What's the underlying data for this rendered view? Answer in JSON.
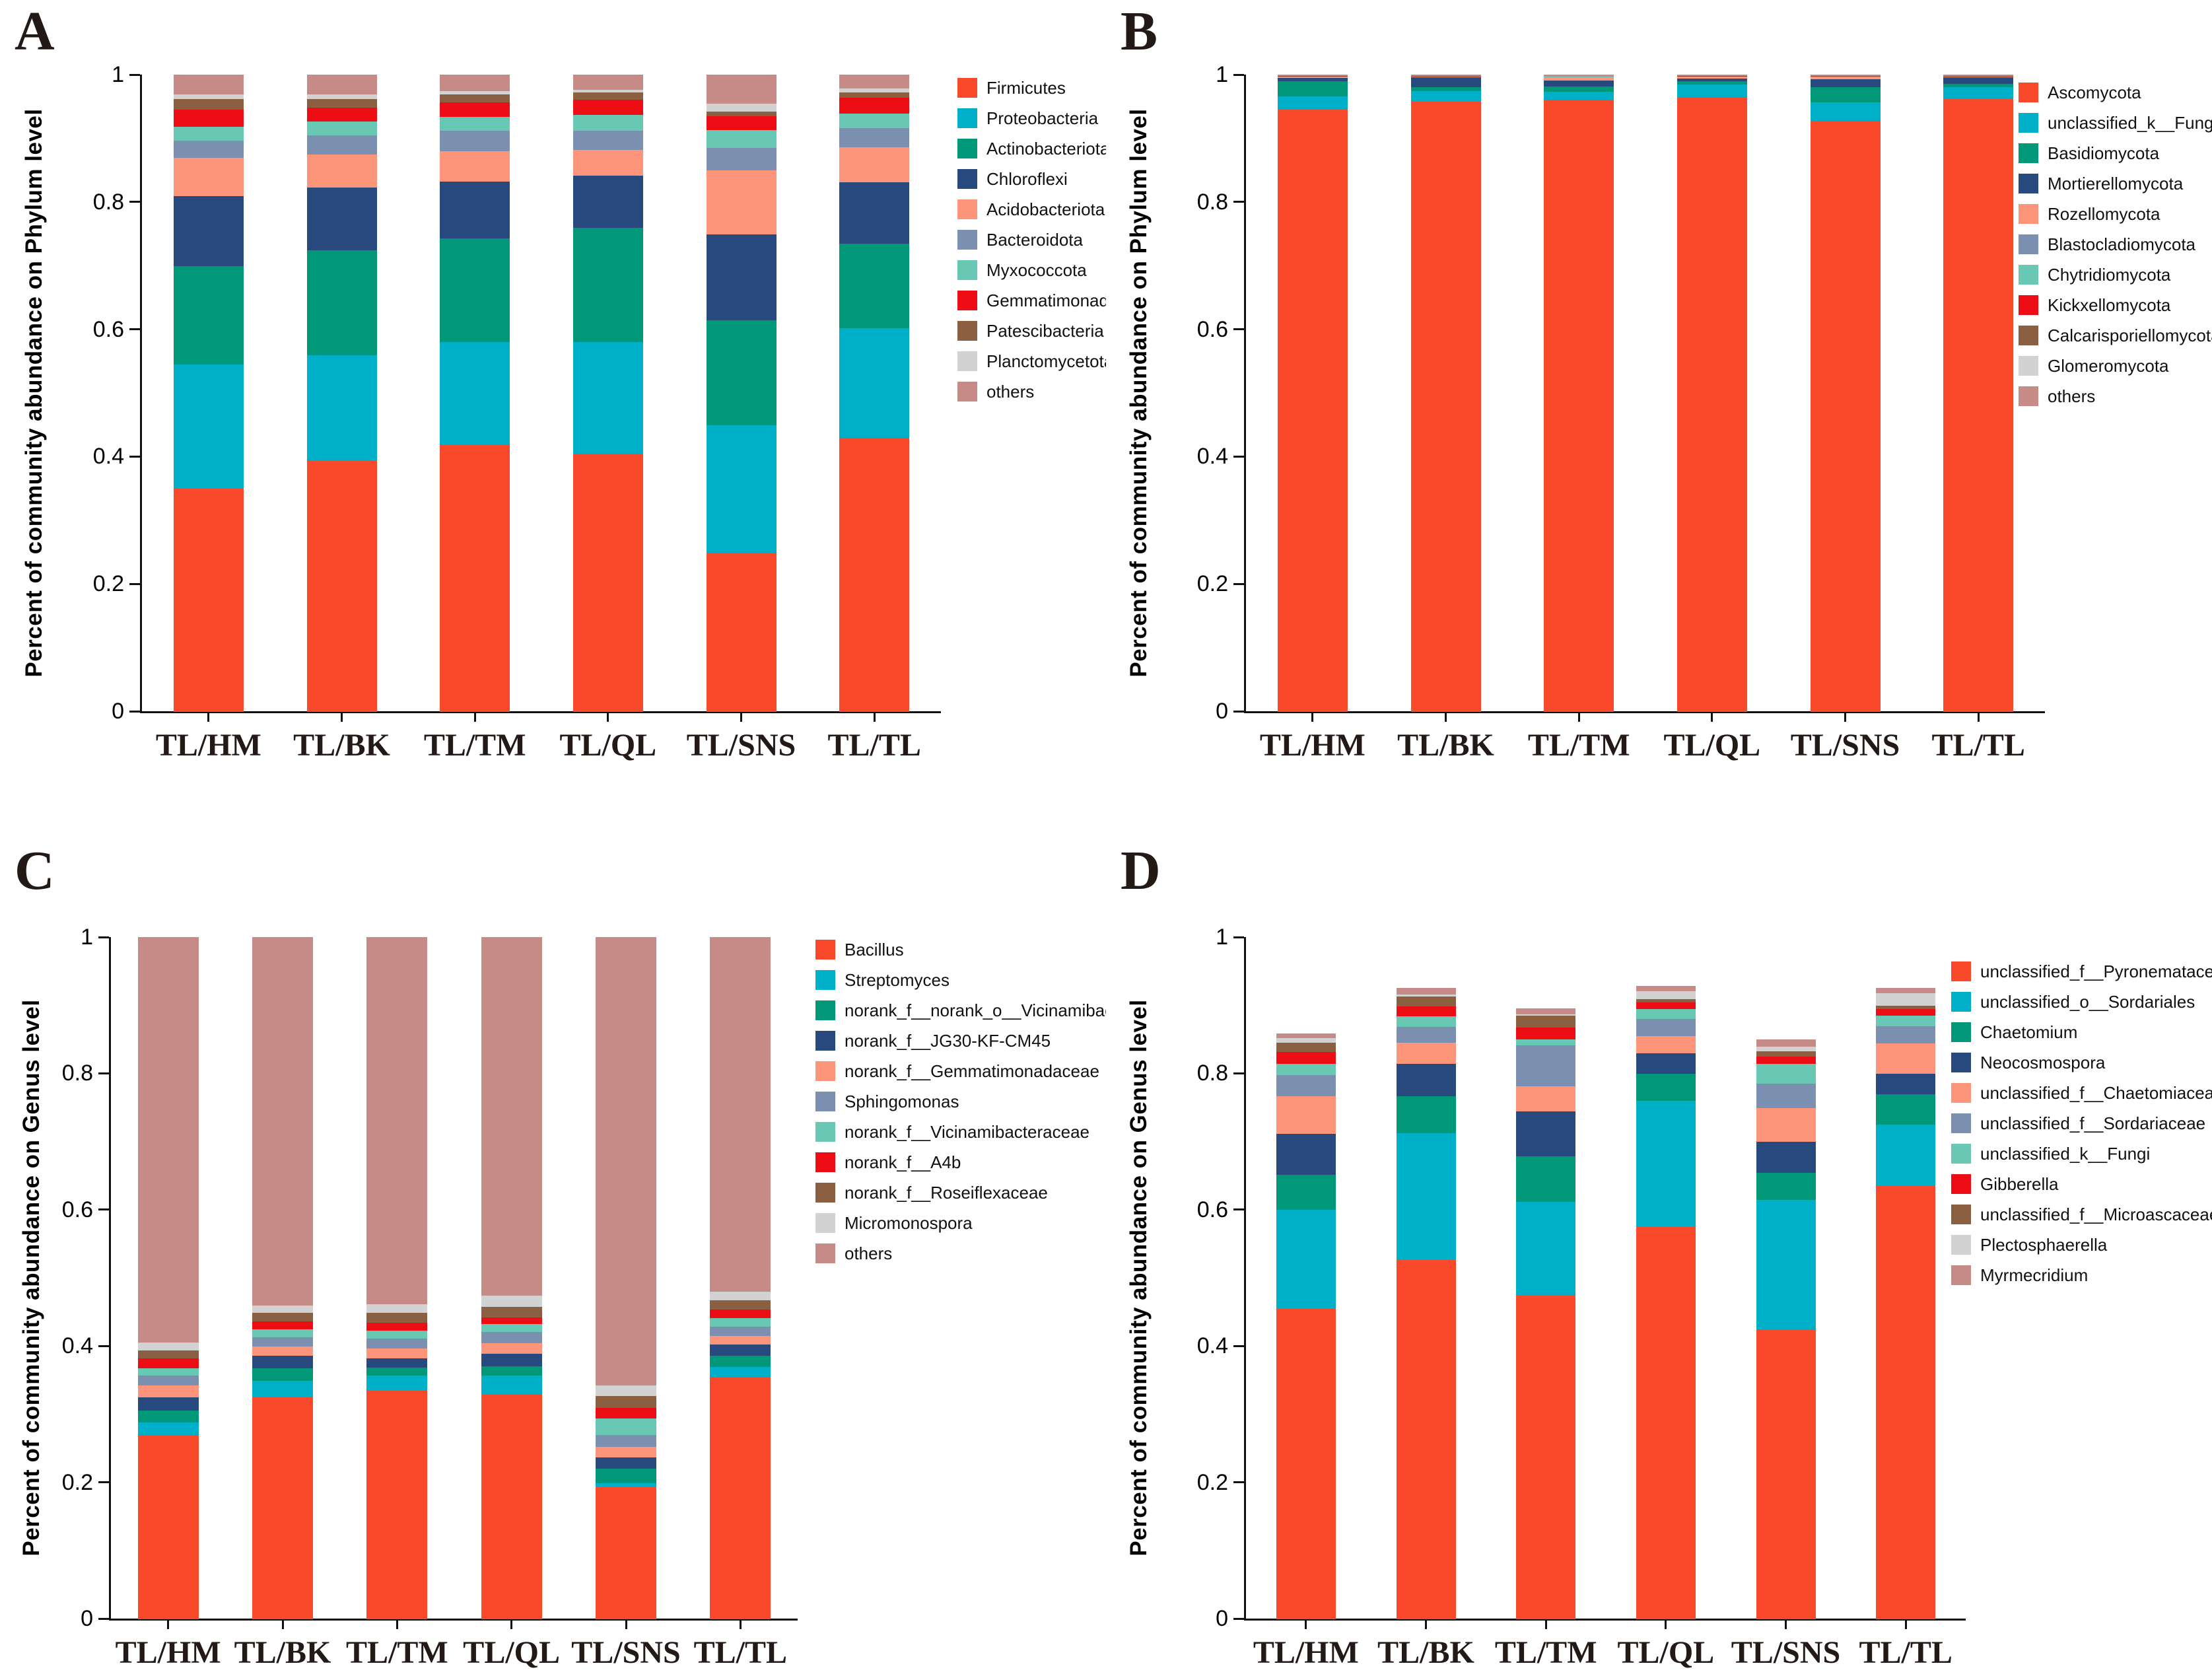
{
  "figure_title": "",
  "y_tick_labels": [
    "0",
    "0.2",
    "0.4",
    "0.6",
    "0.8",
    "1"
  ],
  "categories": [
    "TL/HM",
    "TL/BK",
    "TL/TM",
    "TL/QL",
    "TL/SNS",
    "TL/TL"
  ],
  "palette": {
    "c1": "#F84A2B",
    "c2": "#00AFC8",
    "c3": "#009879",
    "c4": "#28497D",
    "c5": "#FC9579",
    "c6": "#7B8FB0",
    "c7": "#68C8B4",
    "c8": "#EC0D15",
    "c9": "#8A5F42",
    "c10": "#D2D2D2",
    "c11": "#C68B86"
  },
  "chart_data": [
    {
      "id": "A",
      "letter": "A",
      "type": "stacked-bar",
      "stacked": true,
      "grid": false,
      "legend_position": "right",
      "ylim": [
        0,
        1
      ],
      "ylabel": "Percent of community abundance on Phylum level",
      "yticks": [
        "0",
        "0.2",
        "0.4",
        "0.6",
        "0.8",
        "1"
      ],
      "categories": [
        "TL/HM",
        "TL/BK",
        "TL/TM",
        "TL/QL",
        "TL/SNS",
        "TL/TL"
      ],
      "series": [
        {
          "name": "Firmicutes",
          "color": "#F84A2B",
          "values": [
            0.35,
            0.395,
            0.42,
            0.405,
            0.25,
            0.43
          ]
        },
        {
          "name": "Proteobacteria",
          "color": "#00AFC8",
          "values": [
            0.195,
            0.165,
            0.16,
            0.175,
            0.2,
            0.172
          ]
        },
        {
          "name": "Actinobacteriota",
          "color": "#009879",
          "values": [
            0.155,
            0.165,
            0.163,
            0.18,
            0.165,
            0.133
          ]
        },
        {
          "name": "Chloroflexi",
          "color": "#28497D",
          "values": [
            0.11,
            0.098,
            0.09,
            0.082,
            0.135,
            0.097
          ]
        },
        {
          "name": "Acidobacteriota",
          "color": "#FC9579",
          "values": [
            0.06,
            0.052,
            0.047,
            0.04,
            0.1,
            0.055
          ]
        },
        {
          "name": "Bacteroidota",
          "color": "#7B8FB0",
          "values": [
            0.027,
            0.03,
            0.032,
            0.03,
            0.035,
            0.03
          ]
        },
        {
          "name": "Myxococcota",
          "color": "#68C8B4",
          "values": [
            0.022,
            0.022,
            0.022,
            0.025,
            0.028,
            0.022
          ]
        },
        {
          "name": "Gemmatimonadota",
          "color": "#EC0D15",
          "values": [
            0.027,
            0.022,
            0.023,
            0.024,
            0.022,
            0.025
          ]
        },
        {
          "name": "Patescibacteria",
          "color": "#8A5F42",
          "values": [
            0.016,
            0.013,
            0.012,
            0.012,
            0.008,
            0.009
          ]
        },
        {
          "name": "Planctomycetota",
          "color": "#D2D2D2",
          "values": [
            0.008,
            0.008,
            0.006,
            0.004,
            0.012,
            0.006
          ]
        },
        {
          "name": "others",
          "color": "#C68B86",
          "values": [
            0.03,
            0.03,
            0.025,
            0.023,
            0.045,
            0.021
          ]
        }
      ]
    },
    {
      "id": "B",
      "letter": "B",
      "type": "stacked-bar",
      "stacked": true,
      "grid": false,
      "legend_position": "right",
      "ylim": [
        0,
        1
      ],
      "ylabel": "Percent of community abundance on Phylum level",
      "yticks": [
        "0",
        "0.2",
        "0.4",
        "0.6",
        "0.8",
        "1"
      ],
      "categories": [
        "TL/HM",
        "TL/BK",
        "TL/TM",
        "TL/QL",
        "TL/SNS",
        "TL/TL"
      ],
      "series": [
        {
          "name": "Ascomycota",
          "color": "#F84A2B",
          "values": [
            0.947,
            0.958,
            0.961,
            0.965,
            0.928,
            0.963
          ]
        },
        {
          "name": "unclassified_k__Fungi",
          "color": "#00AFC8",
          "values": [
            0.019,
            0.017,
            0.013,
            0.02,
            0.029,
            0.018
          ]
        },
        {
          "name": "Basidiomycota",
          "color": "#009879",
          "values": [
            0.024,
            0.006,
            0.008,
            0.005,
            0.024,
            0.005
          ]
        },
        {
          "name": "Mortierellomycota",
          "color": "#28497D",
          "values": [
            0.005,
            0.015,
            0.009,
            0.004,
            0.012,
            0.01
          ]
        },
        {
          "name": "Rozellomycota",
          "color": "#FC9579",
          "values": [
            0.002,
            0.001,
            0.005,
            0.003,
            0.004,
            0.001
          ]
        },
        {
          "name": "Blastocladiomycota",
          "color": "#7B8FB0",
          "values": [
            0.0005,
            0.0005,
            0.0005,
            0.0005,
            0.0005,
            0.0005
          ]
        },
        {
          "name": "Chytridiomycota",
          "color": "#68C8B4",
          "values": [
            0.0005,
            0.0005,
            0.0005,
            0.0005,
            0.0005,
            0.0005
          ]
        },
        {
          "name": "Kickxellomycota",
          "color": "#EC0D15",
          "values": [
            0.0005,
            0.0005,
            0.0005,
            0.0005,
            0.0005,
            0.0005
          ]
        },
        {
          "name": "Calcarisporiellomycota",
          "color": "#8A5F42",
          "values": [
            0.0003,
            0.0003,
            0.0003,
            0.0003,
            0.0003,
            0.0003
          ]
        },
        {
          "name": "Glomeromycota",
          "color": "#D2D2D2",
          "values": [
            0.0002,
            0.0002,
            0.0002,
            0.0002,
            0.0002,
            0.0002
          ]
        },
        {
          "name": "others",
          "color": "#C68B86",
          "values": [
            0.001,
            0.001,
            0.002,
            0.001,
            0.001,
            0.001
          ]
        }
      ]
    },
    {
      "id": "C",
      "letter": "C",
      "type": "stacked-bar",
      "stacked": true,
      "grid": false,
      "legend_position": "right",
      "ylim": [
        0,
        1
      ],
      "ylabel": "Percent of community abundance on Genus level",
      "yticks": [
        "0",
        "0.2",
        "0.4",
        "0.6",
        "0.8",
        "1"
      ],
      "categories": [
        "TL/HM",
        "TL/BK",
        "TL/TM",
        "TL/QL",
        "TL/SNS",
        "TL/TL"
      ],
      "series": [
        {
          "name": "Bacillus",
          "color": "#F84A2B",
          "values": [
            0.27,
            0.325,
            0.335,
            0.33,
            0.193,
            0.355
          ]
        },
        {
          "name": "Streptomyces",
          "color": "#00AFC8",
          "values": [
            0.018,
            0.024,
            0.022,
            0.027,
            0.006,
            0.015
          ]
        },
        {
          "name": "norank_f__norank_o__Vicinamibacterales",
          "color": "#009879",
          "values": [
            0.018,
            0.019,
            0.012,
            0.014,
            0.022,
            0.016
          ]
        },
        {
          "name": "norank_f__JG30-KF-CM45",
          "color": "#28497D",
          "values": [
            0.019,
            0.018,
            0.013,
            0.018,
            0.016,
            0.017
          ]
        },
        {
          "name": "norank_f__Gemmatimonadaceae",
          "color": "#FC9579",
          "values": [
            0.018,
            0.014,
            0.015,
            0.016,
            0.016,
            0.012
          ]
        },
        {
          "name": "Sphingomonas",
          "color": "#7B8FB0",
          "values": [
            0.014,
            0.013,
            0.014,
            0.016,
            0.017,
            0.014
          ]
        },
        {
          "name": "norank_f__Vicinamibacteraceae",
          "color": "#68C8B4",
          "values": [
            0.011,
            0.012,
            0.012,
            0.012,
            0.024,
            0.012
          ]
        },
        {
          "name": "norank_f__A4b",
          "color": "#EC0D15",
          "values": [
            0.014,
            0.012,
            0.012,
            0.009,
            0.016,
            0.013
          ]
        },
        {
          "name": "norank_f__Roseiflexaceae",
          "color": "#8A5F42",
          "values": [
            0.012,
            0.012,
            0.014,
            0.016,
            0.017,
            0.014
          ]
        },
        {
          "name": "Micromonospora",
          "color": "#D2D2D2",
          "values": [
            0.012,
            0.011,
            0.013,
            0.016,
            0.016,
            0.012
          ]
        },
        {
          "name": "others",
          "color": "#C68B86",
          "values": [
            0.594,
            0.54,
            0.538,
            0.526,
            0.657,
            0.52
          ]
        }
      ]
    },
    {
      "id": "D",
      "letter": "D",
      "type": "stacked-bar",
      "stacked": true,
      "grid": false,
      "legend_position": "right",
      "ylim": [
        0,
        1
      ],
      "ylabel": "Percent of community abundance on Genus level",
      "yticks": [
        "0",
        "0.2",
        "0.4",
        "0.6",
        "0.8",
        "1"
      ],
      "categories": [
        "TL/HM",
        "TL/BK",
        "TL/TM",
        "TL/QL",
        "TL/SNS",
        "TL/TL"
      ],
      "series": [
        {
          "name": "unclassified_f__Pyronemataceae",
          "color": "#F84A2B",
          "values": [
            0.455,
            0.527,
            0.475,
            0.575,
            0.425,
            0.635
          ]
        },
        {
          "name": "unclassified_o__Sordariales",
          "color": "#00AFC8",
          "values": [
            0.145,
            0.186,
            0.137,
            0.185,
            0.19,
            0.09
          ]
        },
        {
          "name": "Chaetomium",
          "color": "#009879",
          "values": [
            0.052,
            0.054,
            0.067,
            0.04,
            0.04,
            0.045
          ]
        },
        {
          "name": "Neocosmospora",
          "color": "#28497D",
          "values": [
            0.06,
            0.048,
            0.066,
            0.03,
            0.045,
            0.03
          ]
        },
        {
          "name": "unclassified_f__Chaetomiaceae",
          "color": "#FC9579",
          "values": [
            0.055,
            0.031,
            0.037,
            0.025,
            0.05,
            0.045
          ]
        },
        {
          "name": "unclassified_f__Sordariaceae",
          "color": "#7B8FB0",
          "values": [
            0.031,
            0.023,
            0.06,
            0.025,
            0.035,
            0.025
          ]
        },
        {
          "name": "unclassified_k__Fungi",
          "color": "#68C8B4",
          "values": [
            0.017,
            0.015,
            0.008,
            0.015,
            0.03,
            0.015
          ]
        },
        {
          "name": "Gibberella",
          "color": "#EC0D15",
          "values": [
            0.017,
            0.015,
            0.018,
            0.01,
            0.01,
            0.01
          ]
        },
        {
          "name": "unclassified_f__Microascaceae",
          "color": "#8A5F42",
          "values": [
            0.014,
            0.014,
            0.017,
            0.004,
            0.008,
            0.005
          ]
        },
        {
          "name": "Plectosphaerella",
          "color": "#D2D2D2",
          "values": [
            0.006,
            0.003,
            0.002,
            0.012,
            0.007,
            0.018
          ]
        },
        {
          "name": "Myrmecridium",
          "color": "#C68B86",
          "values": [
            0.007,
            0.009,
            0.008,
            0.007,
            0.01,
            0.007
          ]
        }
      ]
    }
  ]
}
